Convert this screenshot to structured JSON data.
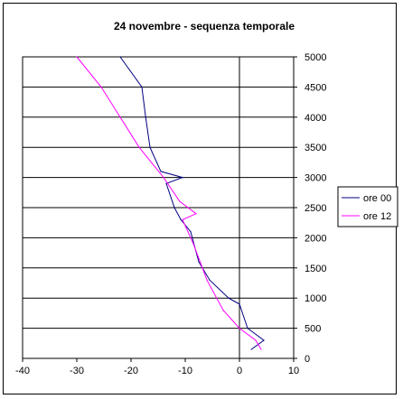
{
  "chart_data": {
    "type": "line",
    "title": "24 novembre - sequenza temporale",
    "xlabel": "",
    "ylabel": "",
    "xlim": [
      -40,
      10
    ],
    "ylim": [
      0,
      5000
    ],
    "x_ticks": [
      -40,
      -30,
      -20,
      -10,
      0,
      10
    ],
    "y_ticks": [
      0,
      500,
      1000,
      1500,
      2000,
      2500,
      3000,
      3500,
      4000,
      4500,
      5000
    ],
    "grid": "horizontal",
    "y_axis_side": "right",
    "legend_position": "right",
    "series": [
      {
        "name": "ore 00",
        "color": "#000080",
        "points": [
          [
            -22,
            5000
          ],
          [
            -18,
            4500
          ],
          [
            -17.3,
            4000
          ],
          [
            -16.5,
            3500
          ],
          [
            -14.5,
            3100
          ],
          [
            -10.5,
            3000
          ],
          [
            -13.5,
            2900
          ],
          [
            -12,
            2500
          ],
          [
            -10.8,
            2300
          ],
          [
            -9,
            2100
          ],
          [
            -7.5,
            1600
          ],
          [
            -5.5,
            1300
          ],
          [
            -2,
            1000
          ],
          [
            0,
            900
          ],
          [
            1.5,
            500
          ],
          [
            4.5,
            300
          ],
          [
            2.2,
            150
          ]
        ]
      },
      {
        "name": "ore 12",
        "color": "#ff00ff",
        "points": [
          [
            -30,
            5000
          ],
          [
            -25.5,
            4500
          ],
          [
            -22,
            4000
          ],
          [
            -18.5,
            3500
          ],
          [
            -14,
            3000
          ],
          [
            -11,
            2600
          ],
          [
            -8,
            2400
          ],
          [
            -10.5,
            2300
          ],
          [
            -8.5,
            1900
          ],
          [
            -6,
            1300
          ],
          [
            -3,
            800
          ],
          [
            0,
            500
          ],
          [
            3,
            300
          ],
          [
            4,
            150
          ]
        ]
      }
    ]
  }
}
